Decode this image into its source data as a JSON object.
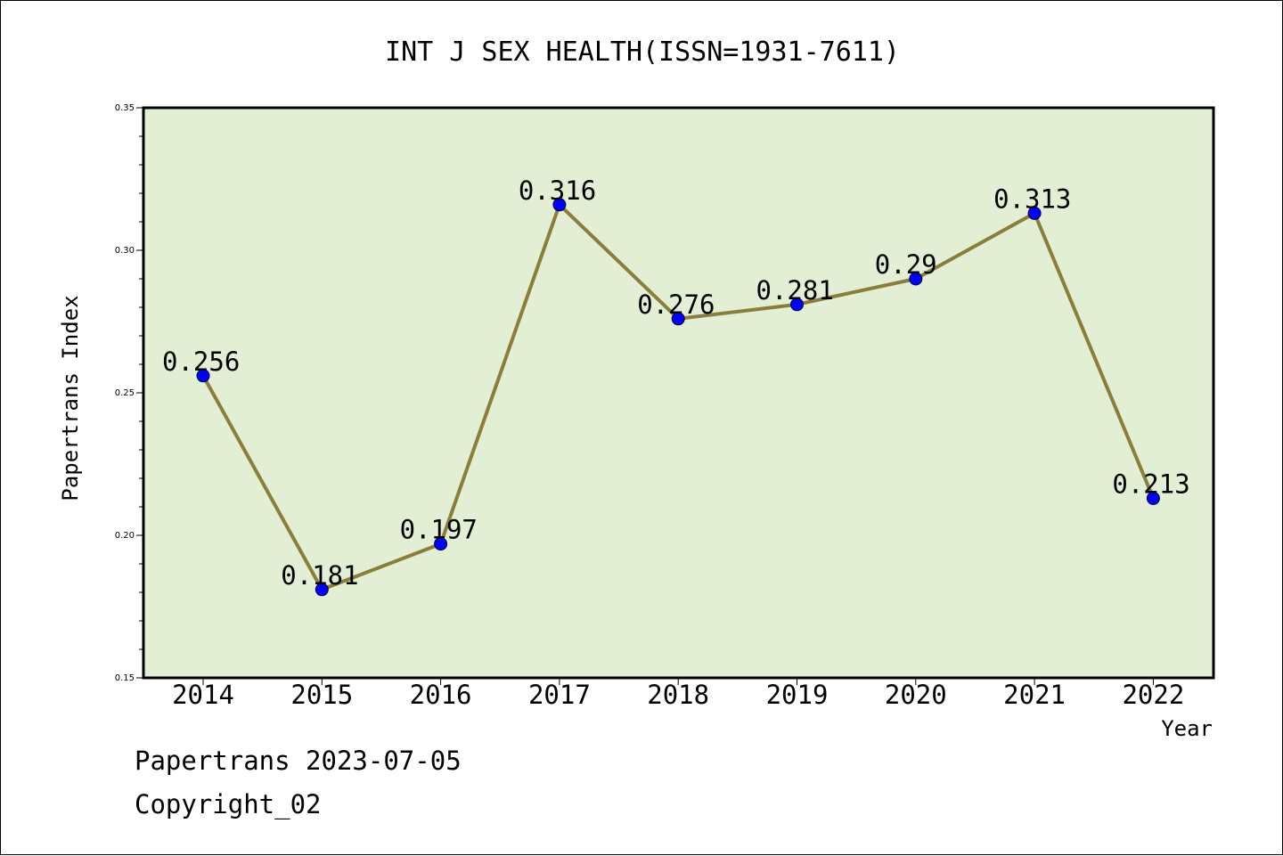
{
  "chart_data": {
    "type": "line",
    "title": "INT J SEX HEALTH(ISSN=1931-7611)",
    "xlabel": "Year",
    "ylabel": "Papertrans Index",
    "categories": [
      "2014",
      "2015",
      "2016",
      "2017",
      "2018",
      "2019",
      "2020",
      "2021",
      "2022"
    ],
    "series": [
      {
        "values": [
          0.256,
          0.181,
          0.197,
          0.316,
          0.276,
          0.281,
          0.29,
          0.313,
          0.213
        ],
        "data_labels": [
          "0.256",
          "0.181",
          "0.197",
          "0.316",
          "0.276",
          "0.281",
          "0.29",
          "0.313",
          "0.213"
        ]
      }
    ],
    "ylim": [
      0.15,
      0.35
    ],
    "y_ticks": [
      "0.15",
      "0.20",
      "0.25",
      "0.30",
      "0.35"
    ],
    "grid": false,
    "colors": {
      "plot_background": "#e2efd4",
      "line": "#8b7d3a",
      "marker": "#0000ff"
    }
  },
  "footer": {
    "line1": "Papertrans 2023-07-05",
    "line2": "Copyright_02"
  }
}
